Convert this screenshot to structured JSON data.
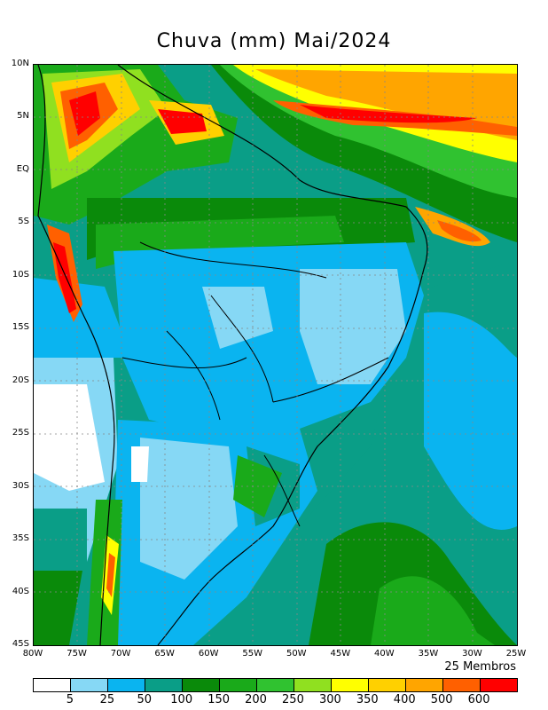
{
  "title": "Chuva (mm) Mai/2024",
  "lat_labels": [
    "10N",
    "5N",
    "EQ",
    "5S",
    "10S",
    "15S",
    "20S",
    "25S",
    "30S",
    "35S",
    "40S",
    "45S"
  ],
  "lon_labels": [
    "80W",
    "75W",
    "70W",
    "65W",
    "60W",
    "55W",
    "50W",
    "45W",
    "40W",
    "35W",
    "30W",
    "25W"
  ],
  "members_label": "25 Membros",
  "legend": {
    "colors": [
      "#ffffff",
      "#86d8f5",
      "#0ab4f0",
      "#0a9e87",
      "#0a8a0a",
      "#1aaa1a",
      "#30c230",
      "#90e020",
      "#ffff00",
      "#ffd000",
      "#ffa500",
      "#ff6000",
      "#ff0000"
    ],
    "labels": [
      "5",
      "25",
      "50",
      "100",
      "150",
      "200",
      "250",
      "300",
      "350",
      "400",
      "500",
      "600"
    ]
  },
  "map": {
    "region": "South America",
    "lat_range": [
      -45,
      10
    ],
    "lon_range": [
      -80,
      -25
    ],
    "grid": true
  }
}
